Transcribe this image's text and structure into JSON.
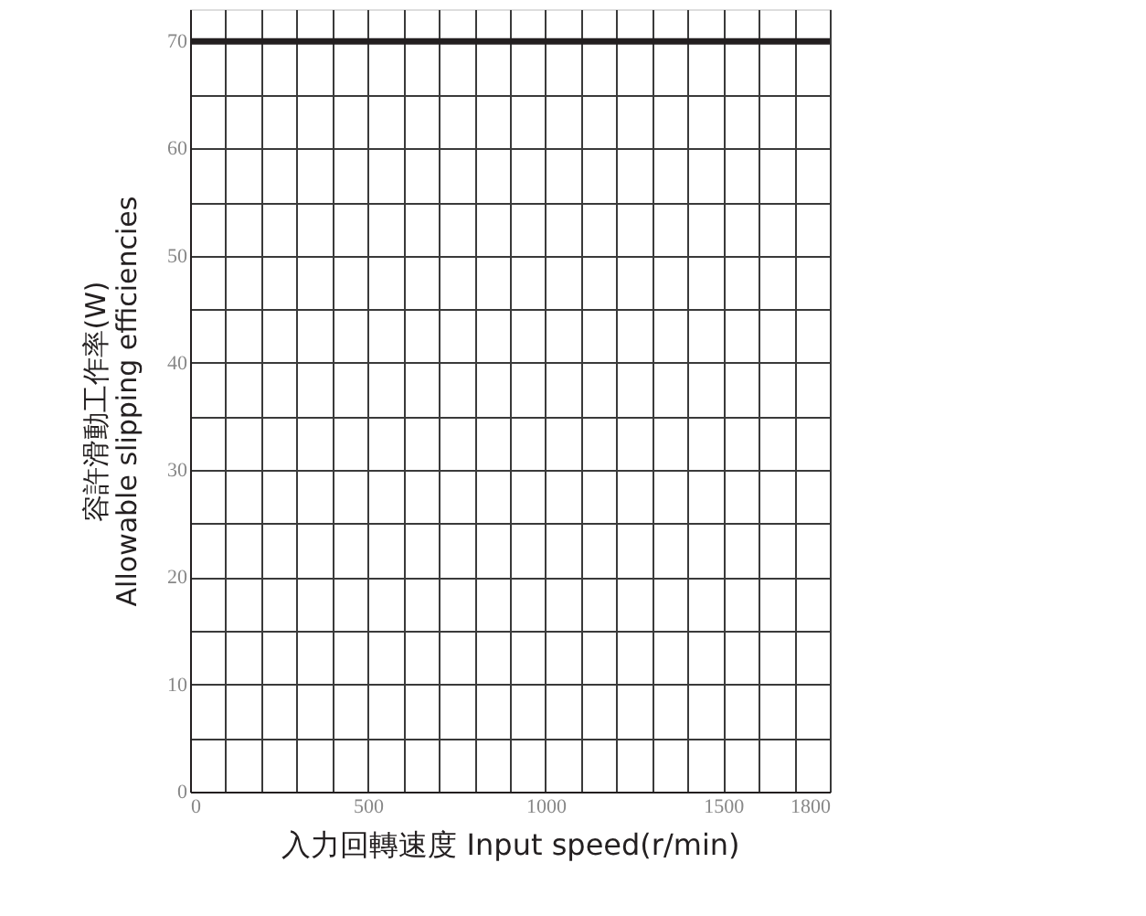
{
  "chart_data": {
    "type": "line",
    "xlabel": "入力回轉速度 Input speed(r/min)",
    "ylabel": [
      "容許滑動工作率(W)",
      "Allowable slipping efficiencies"
    ],
    "x": [
      0,
      1800
    ],
    "series": [
      {
        "color": "#231f20",
        "values": [
          70,
          70
        ]
      }
    ],
    "xlim": [
      0,
      1800
    ],
    "xticks": [
      0,
      {
        "value": 100,
        "label": null
      },
      {
        "value": 200,
        "label": null
      },
      {
        "value": 300,
        "label": null
      },
      {
        "value": 400,
        "label": null
      },
      500,
      {
        "value": 600,
        "label": null
      },
      {
        "value": 700,
        "label": null
      },
      {
        "value": 800,
        "label": null
      },
      {
        "value": 900,
        "label": null
      },
      1000,
      {
        "value": 1100,
        "label": null
      },
      {
        "value": 1200,
        "label": null
      },
      {
        "value": 1300,
        "label": null
      },
      {
        "value": 1400,
        "label": null
      },
      1500,
      {
        "value": 1600,
        "label": null
      },
      {
        "value": 1700,
        "label": null
      },
      1800
    ],
    "ylim": [
      0,
      73
    ],
    "yticks": [
      0,
      {
        "value": 5,
        "label": null
      },
      10,
      {
        "value": 15,
        "label": null
      },
      20,
      {
        "value": 25,
        "label": null
      },
      30,
      {
        "value": 35,
        "label": null
      },
      40,
      {
        "value": 45,
        "label": null
      },
      50,
      {
        "value": 55,
        "label": null
      },
      60,
      {
        "value": 65,
        "label": null
      },
      70
    ],
    "grid": true,
    "legend": false,
    "marker": "none",
    "line_style": "solid"
  }
}
